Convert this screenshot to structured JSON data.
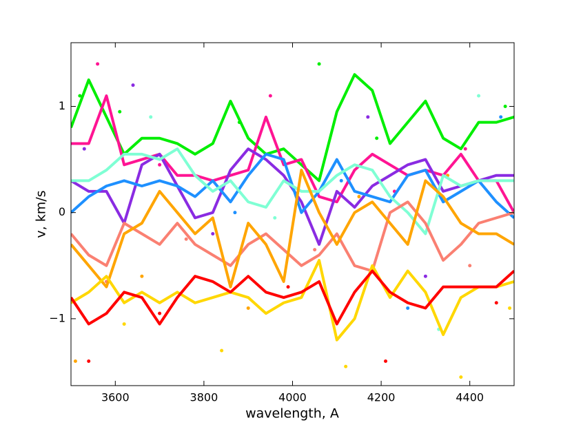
{
  "chart_data": {
    "type": "line",
    "xlabel": "wavelength, A",
    "ylabel": "v, km/s",
    "xlim": [
      3500,
      4500
    ],
    "ylim": [
      -1.63,
      1.6
    ],
    "xticks": [
      3600,
      3800,
      4000,
      4200,
      4400
    ],
    "yticks": [
      {
        "value": -1,
        "label": "−1"
      },
      0,
      1
    ],
    "x": [
      3500,
      3540,
      3580,
      3620,
      3660,
      3700,
      3740,
      3780,
      3820,
      3860,
      3900,
      3940,
      3980,
      4020,
      4060,
      4100,
      4140,
      4180,
      4220,
      4260,
      4300,
      4340,
      4380,
      4420,
      4460,
      4500
    ],
    "series": [
      {
        "color": "#00ee00",
        "values": [
          0.8,
          1.25,
          0.9,
          0.55,
          0.7,
          0.7,
          0.65,
          0.55,
          0.65,
          1.05,
          0.7,
          0.55,
          0.6,
          0.45,
          0.3,
          0.95,
          1.3,
          1.15,
          0.65,
          0.85,
          1.05,
          0.7,
          0.6,
          0.85,
          0.85,
          0.9
        ]
      },
      {
        "color": "#ff1493",
        "values": [
          0.65,
          0.65,
          1.1,
          0.45,
          0.5,
          0.55,
          0.35,
          0.35,
          0.3,
          0.35,
          0.4,
          0.9,
          0.45,
          0.5,
          0.15,
          0.1,
          0.4,
          0.55,
          0.45,
          0.35,
          0.4,
          0.35,
          0.55,
          0.3,
          0.3,
          0.0
        ]
      },
      {
        "color": "#8a2be2",
        "values": [
          0.3,
          0.2,
          0.2,
          -0.1,
          0.45,
          0.55,
          0.25,
          -0.05,
          0.0,
          0.4,
          0.6,
          0.5,
          0.35,
          0.1,
          -0.3,
          0.2,
          0.05,
          0.25,
          0.35,
          0.45,
          0.5,
          0.2,
          0.25,
          0.3,
          0.35,
          0.35
        ]
      },
      {
        "color": "#1e90ff",
        "values": [
          0.0,
          0.15,
          0.25,
          0.3,
          0.25,
          0.3,
          0.25,
          0.15,
          0.3,
          0.1,
          0.35,
          0.55,
          0.5,
          0.0,
          0.2,
          0.5,
          0.2,
          0.15,
          0.1,
          0.35,
          0.4,
          0.1,
          0.2,
          0.3,
          0.1,
          -0.05
        ]
      },
      {
        "color": "#7fffd4",
        "values": [
          0.3,
          0.3,
          0.4,
          0.55,
          0.55,
          0.5,
          0.6,
          0.35,
          0.2,
          0.3,
          0.1,
          0.05,
          0.3,
          0.2,
          0.2,
          0.35,
          0.45,
          0.4,
          0.15,
          0.0,
          -0.2,
          0.35,
          0.25,
          0.3,
          0.3,
          0.3
        ]
      },
      {
        "color": "#fa8072",
        "values": [
          -0.2,
          -0.4,
          -0.5,
          -0.1,
          -0.2,
          -0.3,
          -0.1,
          -0.3,
          -0.4,
          -0.5,
          -0.3,
          -0.2,
          -0.35,
          -0.5,
          -0.4,
          -0.2,
          -0.5,
          -0.55,
          0.0,
          0.1,
          -0.1,
          -0.45,
          -0.3,
          -0.1,
          -0.05,
          0.0
        ]
      },
      {
        "color": "#ffa500",
        "values": [
          -0.3,
          -0.5,
          -0.7,
          -0.2,
          -0.1,
          0.2,
          0.0,
          -0.2,
          -0.05,
          -0.7,
          -0.1,
          -0.3,
          -0.65,
          0.4,
          0.0,
          -0.3,
          0.0,
          0.1,
          -0.1,
          -0.3,
          0.3,
          0.15,
          -0.1,
          -0.2,
          -0.2,
          -0.3
        ]
      },
      {
        "color": "#ffd700",
        "values": [
          -0.85,
          -0.75,
          -0.6,
          -0.85,
          -0.75,
          -0.85,
          -0.75,
          -0.85,
          -0.8,
          -0.75,
          -0.8,
          -0.95,
          -0.85,
          -0.8,
          -0.45,
          -1.2,
          -1.0,
          -0.5,
          -0.8,
          -0.55,
          -0.75,
          -1.15,
          -0.8,
          -0.7,
          -0.7,
          -0.65
        ]
      },
      {
        "color": "#ff0000",
        "values": [
          -0.8,
          -1.05,
          -0.95,
          -0.75,
          -0.8,
          -1.05,
          -0.8,
          -0.6,
          -0.65,
          -0.75,
          -0.6,
          -0.75,
          -0.8,
          -0.75,
          -0.65,
          -1.05,
          -0.75,
          -0.55,
          -0.75,
          -0.85,
          -0.9,
          -0.7,
          -0.7,
          -0.7,
          -0.7,
          -0.55
        ]
      }
    ],
    "dots": [
      {
        "color": "#00ee00",
        "x": [
          3520,
          3610,
          3880,
          4060,
          4190,
          4480
        ],
        "y": [
          1.1,
          0.95,
          0.85,
          1.4,
          0.7,
          1.0
        ]
      },
      {
        "color": "#ff1493",
        "x": [
          3560,
          3700,
          3950,
          4230,
          4390
        ],
        "y": [
          1.4,
          0.45,
          1.1,
          0.2,
          0.6
        ]
      },
      {
        "color": "#8a2be2",
        "x": [
          3530,
          3640,
          3820,
          4170,
          4300
        ],
        "y": [
          0.6,
          1.2,
          -0.2,
          0.9,
          -0.6
        ]
      },
      {
        "color": "#1e90ff",
        "x": [
          3600,
          3870,
          4110,
          4260,
          4470
        ],
        "y": [
          0.75,
          0.0,
          0.3,
          -0.9,
          0.9
        ]
      },
      {
        "color": "#7fffd4",
        "x": [
          3680,
          3960,
          4330,
          4420
        ],
        "y": [
          0.9,
          -0.05,
          -1.1,
          1.1
        ]
      },
      {
        "color": "#fa8072",
        "x": [
          3580,
          3760,
          4050,
          4400
        ],
        "y": [
          -0.65,
          -0.25,
          -0.35,
          -0.5
        ]
      },
      {
        "color": "#ffa500",
        "x": [
          3510,
          3660,
          3900,
          4150,
          4350
        ],
        "y": [
          -1.4,
          -0.6,
          -0.9,
          0.15,
          0.35
        ]
      },
      {
        "color": "#ffd700",
        "x": [
          3620,
          3840,
          4120,
          4380,
          4490
        ],
        "y": [
          -1.05,
          -1.3,
          -1.45,
          -1.55,
          -0.9
        ]
      },
      {
        "color": "#ff0000",
        "x": [
          3540,
          3700,
          3990,
          4210,
          4460
        ],
        "y": [
          -1.4,
          -0.95,
          -0.7,
          -1.4,
          -0.85
        ]
      }
    ]
  }
}
